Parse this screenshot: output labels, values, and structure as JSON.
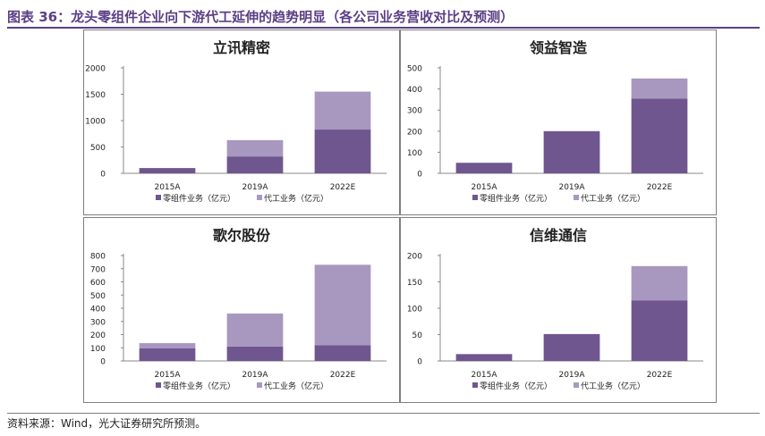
{
  "figure_title": "图表 36：龙头零组件企业向下游代工延伸的趋势明显（各公司业务营收对比及预测）",
  "source_note": "资料来源：Wind，光大证券研究所预测。",
  "colors": {
    "title": "#5b3f86",
    "series_component": "#6f568f",
    "series_oem": "#a898bf"
  },
  "chart_data": [
    {
      "type": "bar",
      "stacked": true,
      "title": "立讯精密",
      "categories": [
        "2015A",
        "2019A",
        "2022E"
      ],
      "series": [
        {
          "name": "零组件业务（亿元）",
          "values": [
            100,
            320,
            830
          ]
        },
        {
          "name": "代工业务（亿元）",
          "values": [
            0,
            310,
            720
          ]
        }
      ],
      "ylim": [
        0,
        2000
      ],
      "yticks": [
        0,
        500,
        1000,
        1500,
        2000
      ],
      "grid": false,
      "legend": "bottom"
    },
    {
      "type": "bar",
      "stacked": true,
      "title": "领益智造",
      "categories": [
        "2015A",
        "2019A",
        "2022E"
      ],
      "series": [
        {
          "name": "零组件业务（亿元）",
          "values": [
            50,
            200,
            355
          ]
        },
        {
          "name": "代工业务（亿元）",
          "values": [
            0,
            0,
            95
          ]
        }
      ],
      "ylim": [
        0,
        500
      ],
      "yticks": [
        0,
        100,
        200,
        300,
        400,
        500
      ],
      "grid": false,
      "legend": "bottom"
    },
    {
      "type": "bar",
      "stacked": true,
      "title": "歌尔股份",
      "categories": [
        "2015A",
        "2019A",
        "2022E"
      ],
      "series": [
        {
          "name": "零组件业务（亿元）",
          "values": [
            95,
            110,
            120
          ]
        },
        {
          "name": "代工业务（亿元）",
          "values": [
            40,
            250,
            610
          ]
        }
      ],
      "ylim": [
        0,
        800
      ],
      "yticks": [
        0,
        100,
        200,
        300,
        400,
        500,
        600,
        700,
        800
      ],
      "grid": false,
      "legend": "bottom"
    },
    {
      "type": "bar",
      "stacked": true,
      "title": "信维通信",
      "categories": [
        "2015A",
        "2019A",
        "2022E"
      ],
      "series": [
        {
          "name": "零组件业务（亿元）",
          "values": [
            13,
            51,
            115
          ]
        },
        {
          "name": "代工业务（亿元）",
          "values": [
            0,
            0,
            65
          ]
        }
      ],
      "ylim": [
        0,
        200
      ],
      "yticks": [
        0,
        50,
        100,
        150,
        200
      ],
      "grid": false,
      "legend": "bottom"
    }
  ]
}
